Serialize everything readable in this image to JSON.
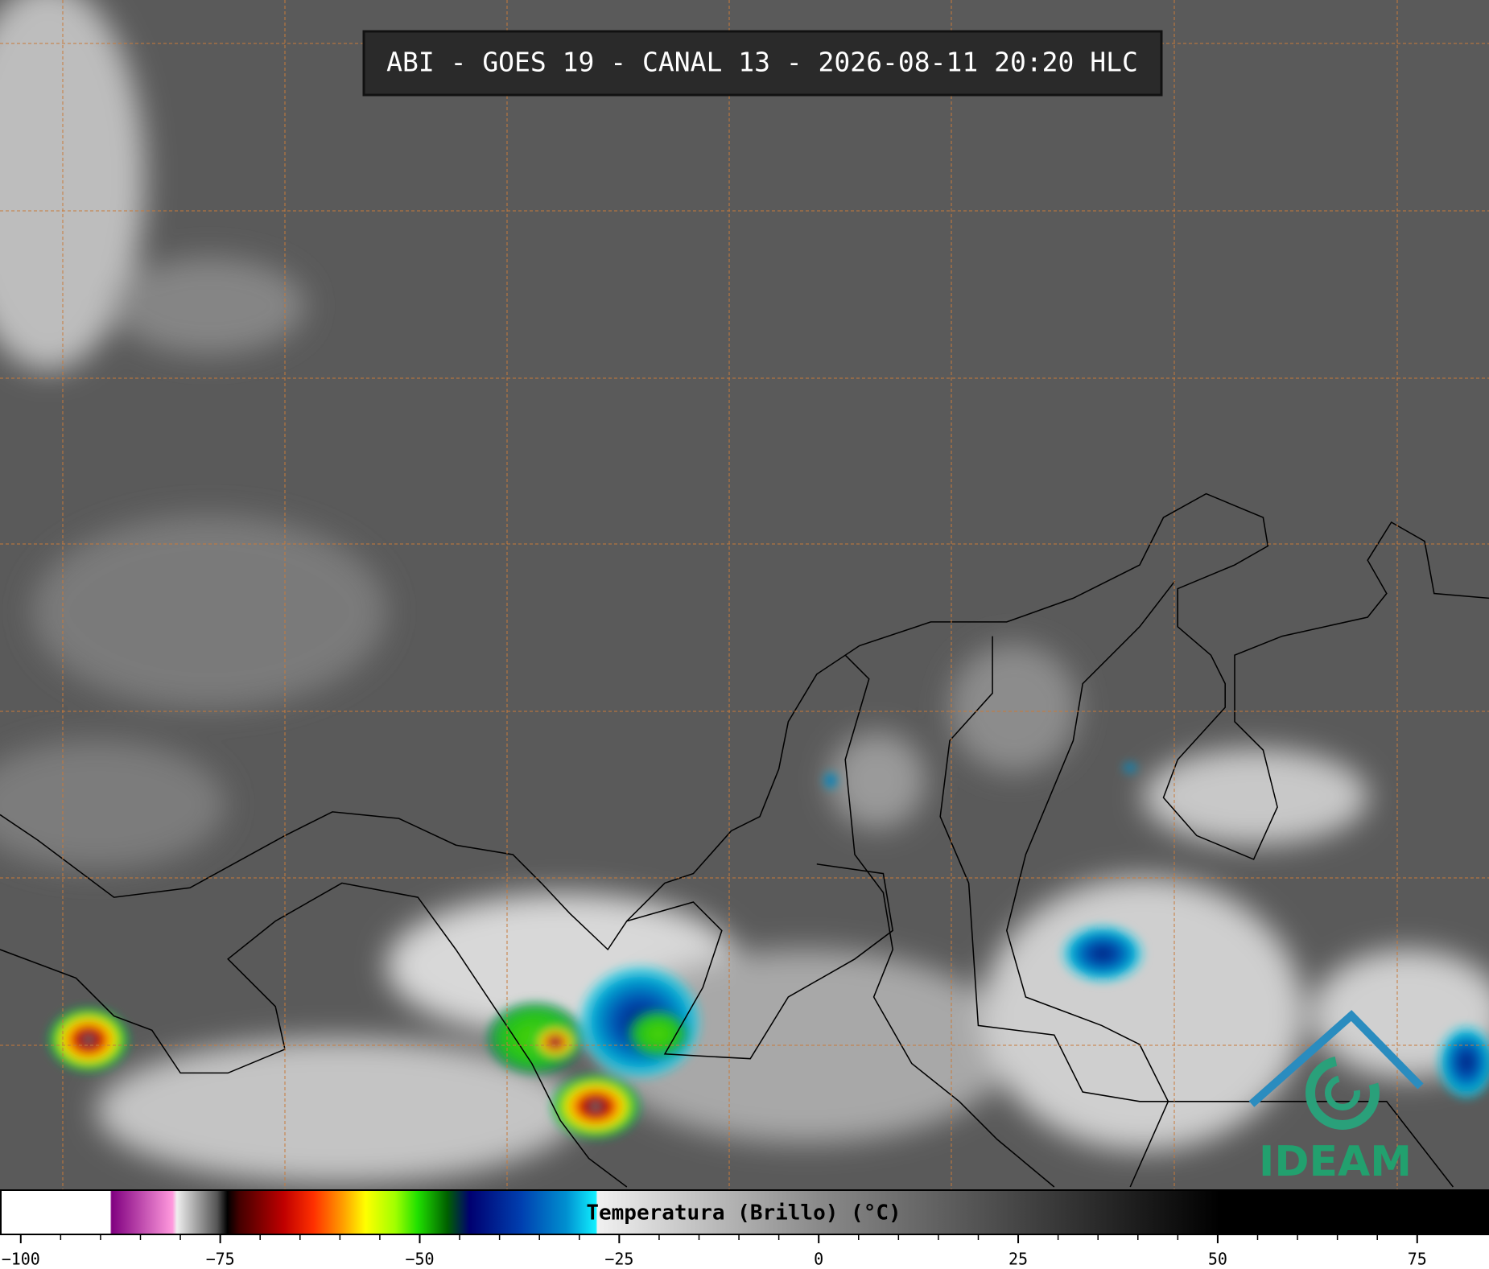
{
  "header": {
    "title": "ABI - GOES 19 - CANAL 13 - 2026-08-11 20:20 HLC"
  },
  "colorbar": {
    "label": "Temperatura (Brillo) (°C)",
    "lim": [
      -102.6,
      84
    ],
    "ticks": [
      {
        "value": -100,
        "label": "−100"
      },
      {
        "value": -75,
        "label": "−75"
      },
      {
        "value": -50,
        "label": "−50"
      },
      {
        "value": -25,
        "label": "−25"
      },
      0,
      25,
      50,
      75
    ]
  },
  "logo": {
    "text": "IDEAM"
  }
}
